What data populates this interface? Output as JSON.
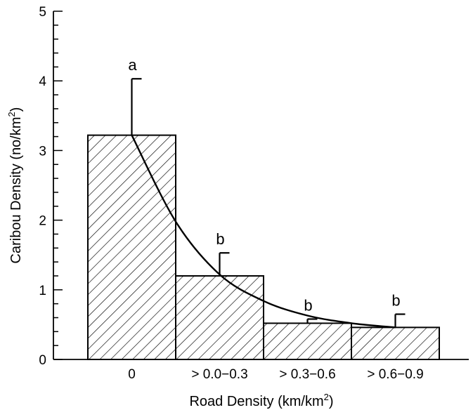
{
  "chart_data": {
    "type": "bar",
    "title": "",
    "xlabel_main": "Road Density (km/km",
    "xlabel_sup": "2",
    "xlabel_end": ")",
    "ylabel_main": "Caribou Density (no/km",
    "ylabel_sup": "2",
    "ylabel_end": ")",
    "ylim": [
      0,
      5
    ],
    "yticks": [
      "0",
      "1",
      "2",
      "3",
      "4",
      "5"
    ],
    "minor_tick_step": 0.2,
    "categories": [
      "0",
      "> 0.0−0.3",
      "> 0.3−0.6",
      "> 0.6−0.9"
    ],
    "values": [
      3.22,
      1.2,
      0.52,
      0.46
    ],
    "error_upper": [
      4.03,
      1.53,
      0.58,
      0.65
    ],
    "significance_labels": [
      "a",
      "b",
      "b",
      "b"
    ],
    "fitted_curve": {
      "type": "exponential decay",
      "x": [
        0,
        0.5,
        1.0,
        1.5,
        2.0,
        2.5,
        3.0
      ],
      "y": [
        3.22,
        1.98,
        1.22,
        0.84,
        0.63,
        0.52,
        0.46
      ]
    },
    "bar_fill": "diagonal hatch",
    "grid": false,
    "legend": "none",
    "colors": {
      "line": "#000000",
      "background": "#ffffff"
    }
  }
}
